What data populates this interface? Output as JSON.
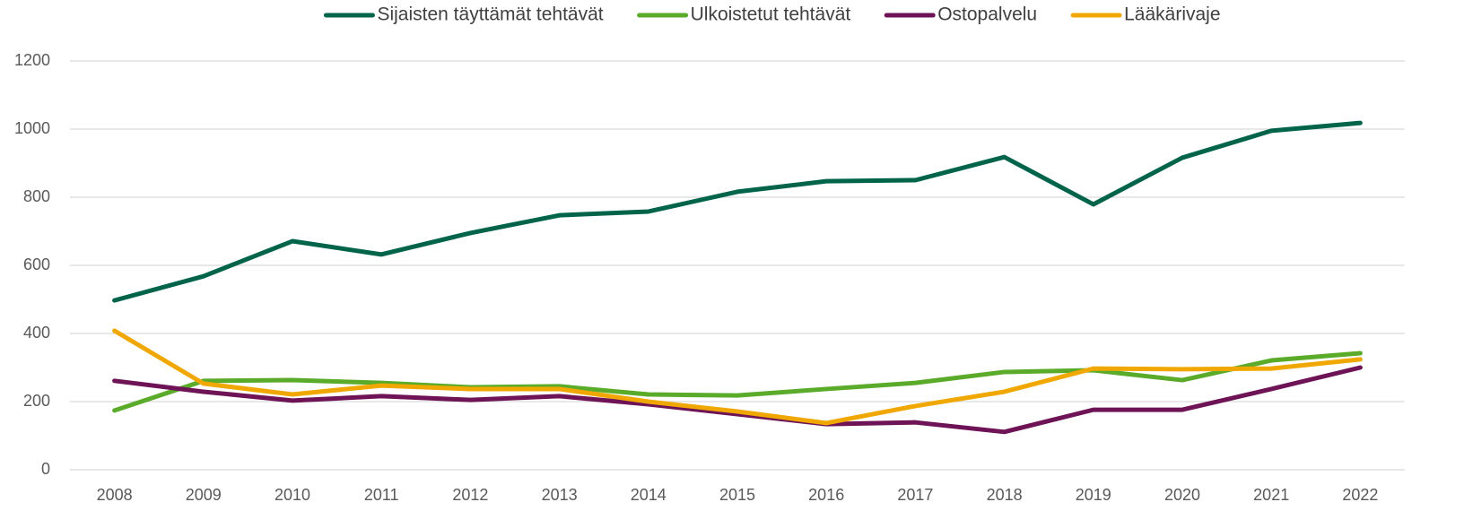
{
  "chart_data": {
    "type": "line",
    "categories": [
      "2008",
      "2009",
      "2010",
      "2011",
      "2012",
      "2013",
      "2014",
      "2015",
      "2016",
      "2017",
      "2018",
      "2019",
      "2020",
      "2021",
      "2022"
    ],
    "series": [
      {
        "name": "Sijaisten täyttämät tehtävät",
        "color": "#00644a",
        "values": [
          497,
          568,
          671,
          632,
          695,
          747,
          758,
          816,
          847,
          850,
          918,
          779,
          916,
          995,
          1018
        ]
      },
      {
        "name": "Ulkoistetut tehtävät",
        "color": "#5aab2a",
        "values": [
          174,
          261,
          263,
          255,
          242,
          245,
          221,
          218,
          237,
          255,
          287,
          292,
          263,
          321,
          342
        ]
      },
      {
        "name": "Ostopalvelu",
        "color": "#6e1456",
        "values": [
          261,
          229,
          203,
          216,
          205,
          216,
          192,
          163,
          134,
          139,
          111,
          176,
          176,
          237,
          300
        ]
      },
      {
        "name": "Lääkärivaje",
        "color": "#f0a800",
        "values": [
          408,
          253,
          221,
          247,
          237,
          237,
          200,
          171,
          137,
          187,
          229,
          297,
          295,
          297,
          324
        ]
      }
    ],
    "ylim": [
      0,
      1200
    ],
    "yticks": [
      0,
      200,
      400,
      600,
      800,
      1000,
      1200
    ],
    "grid": true,
    "legend": "top"
  }
}
